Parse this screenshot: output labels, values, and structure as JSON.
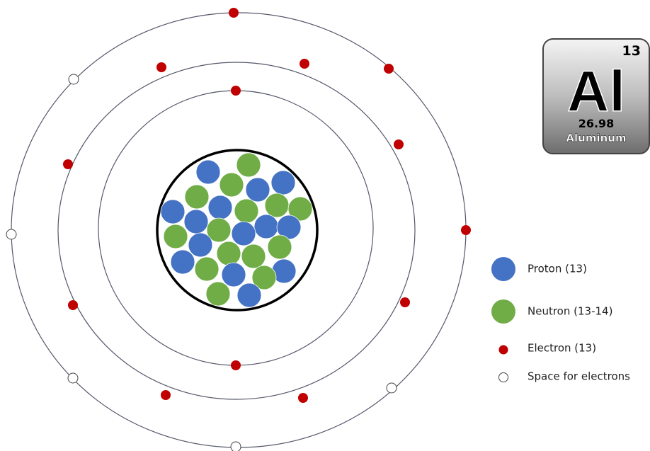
{
  "element": {
    "number": "13",
    "symbol": "Al",
    "mass": "26.98",
    "name": "Aluminum"
  },
  "legend": {
    "proton": "Proton (13)",
    "neutron": "Neutron (13-14)",
    "electron": "Electron (13)",
    "space": "Space for electrons"
  }
}
